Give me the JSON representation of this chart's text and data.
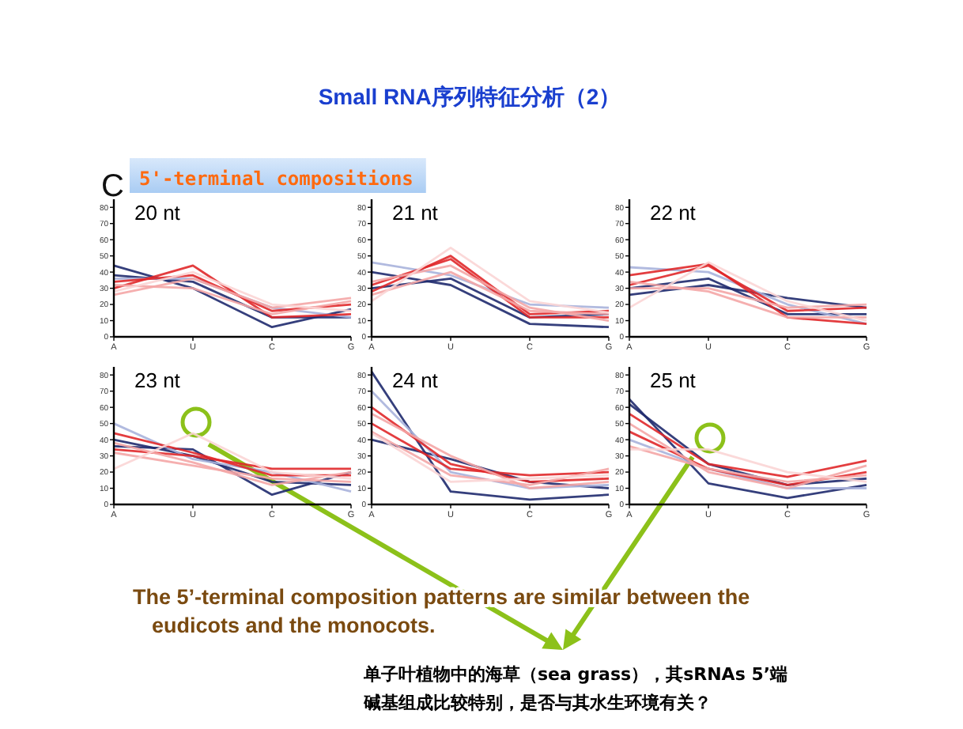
{
  "chart_data": [
    {
      "type": "other",
      "title": "Small RNA序列特征分析（2）",
      "annotations": [
        "C",
        "5'-terminal compositions",
        "The 5’-terminal composition patterns are similar between the eudicots and the monocots.",
        "单子叶植物中的海草（sea grass），其sRNAs 5’端碱基组成比较特别，是否与其水生环境有关？"
      ]
    },
    {
      "type": "line",
      "title": "20 nt",
      "categories": [
        "A",
        "U",
        "C",
        "G"
      ],
      "ylim": [
        0,
        85
      ],
      "yticks": [
        0,
        10,
        20,
        30,
        40,
        50,
        60,
        70,
        80
      ],
      "series": [
        {
          "color": "#1f2a6e",
          "values": [
            44,
            30,
            6,
            17
          ]
        },
        {
          "color": "#1f2a6e",
          "values": [
            38,
            34,
            12,
            12
          ]
        },
        {
          "color": "#a9b3dc",
          "values": [
            36,
            36,
            18,
            12
          ]
        },
        {
          "color": "#e0282a",
          "values": [
            30,
            44,
            12,
            14
          ]
        },
        {
          "color": "#e0282a",
          "values": [
            34,
            38,
            16,
            20
          ]
        },
        {
          "color": "#f4a6a6",
          "values": [
            26,
            36,
            18,
            24
          ]
        },
        {
          "color": "#f4a6a6",
          "values": [
            32,
            30,
            14,
            22
          ]
        },
        {
          "color": "#fbd5d5",
          "values": [
            28,
            40,
            20,
            16
          ]
        }
      ]
    },
    {
      "type": "line",
      "title": "21 nt",
      "categories": [
        "A",
        "U",
        "C",
        "G"
      ],
      "ylim": [
        0,
        85
      ],
      "yticks": [
        0,
        10,
        20,
        30,
        40,
        50,
        60,
        70,
        80
      ],
      "series": [
        {
          "color": "#1f2a6e",
          "values": [
            40,
            32,
            8,
            6
          ]
        },
        {
          "color": "#1f2a6e",
          "values": [
            30,
            36,
            12,
            14
          ]
        },
        {
          "color": "#a9b3dc",
          "values": [
            46,
            38,
            20,
            18
          ]
        },
        {
          "color": "#e0282a",
          "values": [
            28,
            50,
            14,
            16
          ]
        },
        {
          "color": "#e0282a",
          "values": [
            32,
            48,
            12,
            12
          ]
        },
        {
          "color": "#f4a6a6",
          "values": [
            34,
            44,
            18,
            10
          ]
        },
        {
          "color": "#f4a6a6",
          "values": [
            26,
            40,
            16,
            14
          ]
        },
        {
          "color": "#fbd5d5",
          "values": [
            22,
            55,
            22,
            15
          ]
        }
      ]
    },
    {
      "type": "line",
      "title": "22 nt",
      "categories": [
        "A",
        "U",
        "C",
        "G"
      ],
      "ylim": [
        0,
        85
      ],
      "yticks": [
        0,
        10,
        20,
        30,
        40,
        50,
        60,
        70,
        80
      ],
      "series": [
        {
          "color": "#1f2a6e",
          "values": [
            26,
            32,
            24,
            18
          ]
        },
        {
          "color": "#1f2a6e",
          "values": [
            30,
            36,
            14,
            14
          ]
        },
        {
          "color": "#a9b3dc",
          "values": [
            43,
            40,
            20,
            8
          ]
        },
        {
          "color": "#e0282a",
          "values": [
            38,
            45,
            12,
            8
          ]
        },
        {
          "color": "#e0282a",
          "values": [
            32,
            44,
            16,
            18
          ]
        },
        {
          "color": "#f4a6a6",
          "values": [
            30,
            30,
            18,
            20
          ]
        },
        {
          "color": "#f4a6a6",
          "values": [
            34,
            28,
            12,
            12
          ]
        },
        {
          "color": "#fbd5d5",
          "values": [
            18,
            46,
            22,
            10
          ]
        }
      ]
    },
    {
      "type": "line",
      "title": "23 nt",
      "categories": [
        "A",
        "U",
        "C",
        "G"
      ],
      "ylim": [
        0,
        85
      ],
      "yticks": [
        0,
        10,
        20,
        30,
        40,
        50,
        60,
        70,
        80
      ],
      "series": [
        {
          "color": "#1f2a6e",
          "values": [
            36,
            34,
            6,
            20
          ]
        },
        {
          "color": "#1f2a6e",
          "values": [
            40,
            30,
            14,
            12
          ]
        },
        {
          "color": "#a9b3dc",
          "values": [
            50,
            28,
            20,
            8
          ]
        },
        {
          "color": "#e0282a",
          "values": [
            44,
            32,
            18,
            18
          ]
        },
        {
          "color": "#e0282a",
          "values": [
            34,
            30,
            22,
            22
          ]
        },
        {
          "color": "#f4a6a6",
          "values": [
            32,
            24,
            16,
            14
          ]
        },
        {
          "color": "#f4a6a6",
          "values": [
            38,
            26,
            12,
            20
          ]
        },
        {
          "color": "#fbd5d5",
          "values": [
            22,
            44,
            20,
            16
          ]
        }
      ]
    },
    {
      "type": "line",
      "title": "24 nt",
      "categories": [
        "A",
        "U",
        "C",
        "G"
      ],
      "ylim": [
        0,
        85
      ],
      "yticks": [
        0,
        10,
        20,
        30,
        40,
        50,
        60,
        70,
        80
      ],
      "series": [
        {
          "color": "#1f2a6e",
          "values": [
            82,
            8,
            3,
            6
          ]
        },
        {
          "color": "#1f2a6e",
          "values": [
            40,
            28,
            14,
            10
          ]
        },
        {
          "color": "#a9b3dc",
          "values": [
            70,
            20,
            10,
            12
          ]
        },
        {
          "color": "#e0282a",
          "values": [
            60,
            25,
            14,
            16
          ]
        },
        {
          "color": "#e0282a",
          "values": [
            50,
            22,
            18,
            20
          ]
        },
        {
          "color": "#f4a6a6",
          "values": [
            45,
            18,
            12,
            22
          ]
        },
        {
          "color": "#f4a6a6",
          "values": [
            56,
            30,
            10,
            14
          ]
        },
        {
          "color": "#fbd5d5",
          "values": [
            44,
            14,
            16,
            18
          ]
        }
      ]
    },
    {
      "type": "line",
      "title": "25 nt",
      "categories": [
        "A",
        "U",
        "C",
        "G"
      ],
      "ylim": [
        0,
        85
      ],
      "yticks": [
        0,
        10,
        20,
        30,
        40,
        50,
        60,
        70,
        80
      ],
      "series": [
        {
          "color": "#1f2a6e",
          "values": [
            65,
            13,
            4,
            12
          ]
        },
        {
          "color": "#1f2a6e",
          "values": [
            62,
            25,
            12,
            16
          ]
        },
        {
          "color": "#a9b3dc",
          "values": [
            40,
            22,
            10,
            10
          ]
        },
        {
          "color": "#e0282a",
          "values": [
            56,
            25,
            17,
            27
          ]
        },
        {
          "color": "#e0282a",
          "values": [
            45,
            22,
            12,
            20
          ]
        },
        {
          "color": "#f4a6a6",
          "values": [
            36,
            22,
            14,
            18
          ]
        },
        {
          "color": "#f4a6a6",
          "values": [
            50,
            20,
            10,
            24
          ]
        },
        {
          "color": "#fbd5d5",
          "values": [
            34,
            34,
            20,
            14
          ]
        }
      ]
    }
  ]
}
